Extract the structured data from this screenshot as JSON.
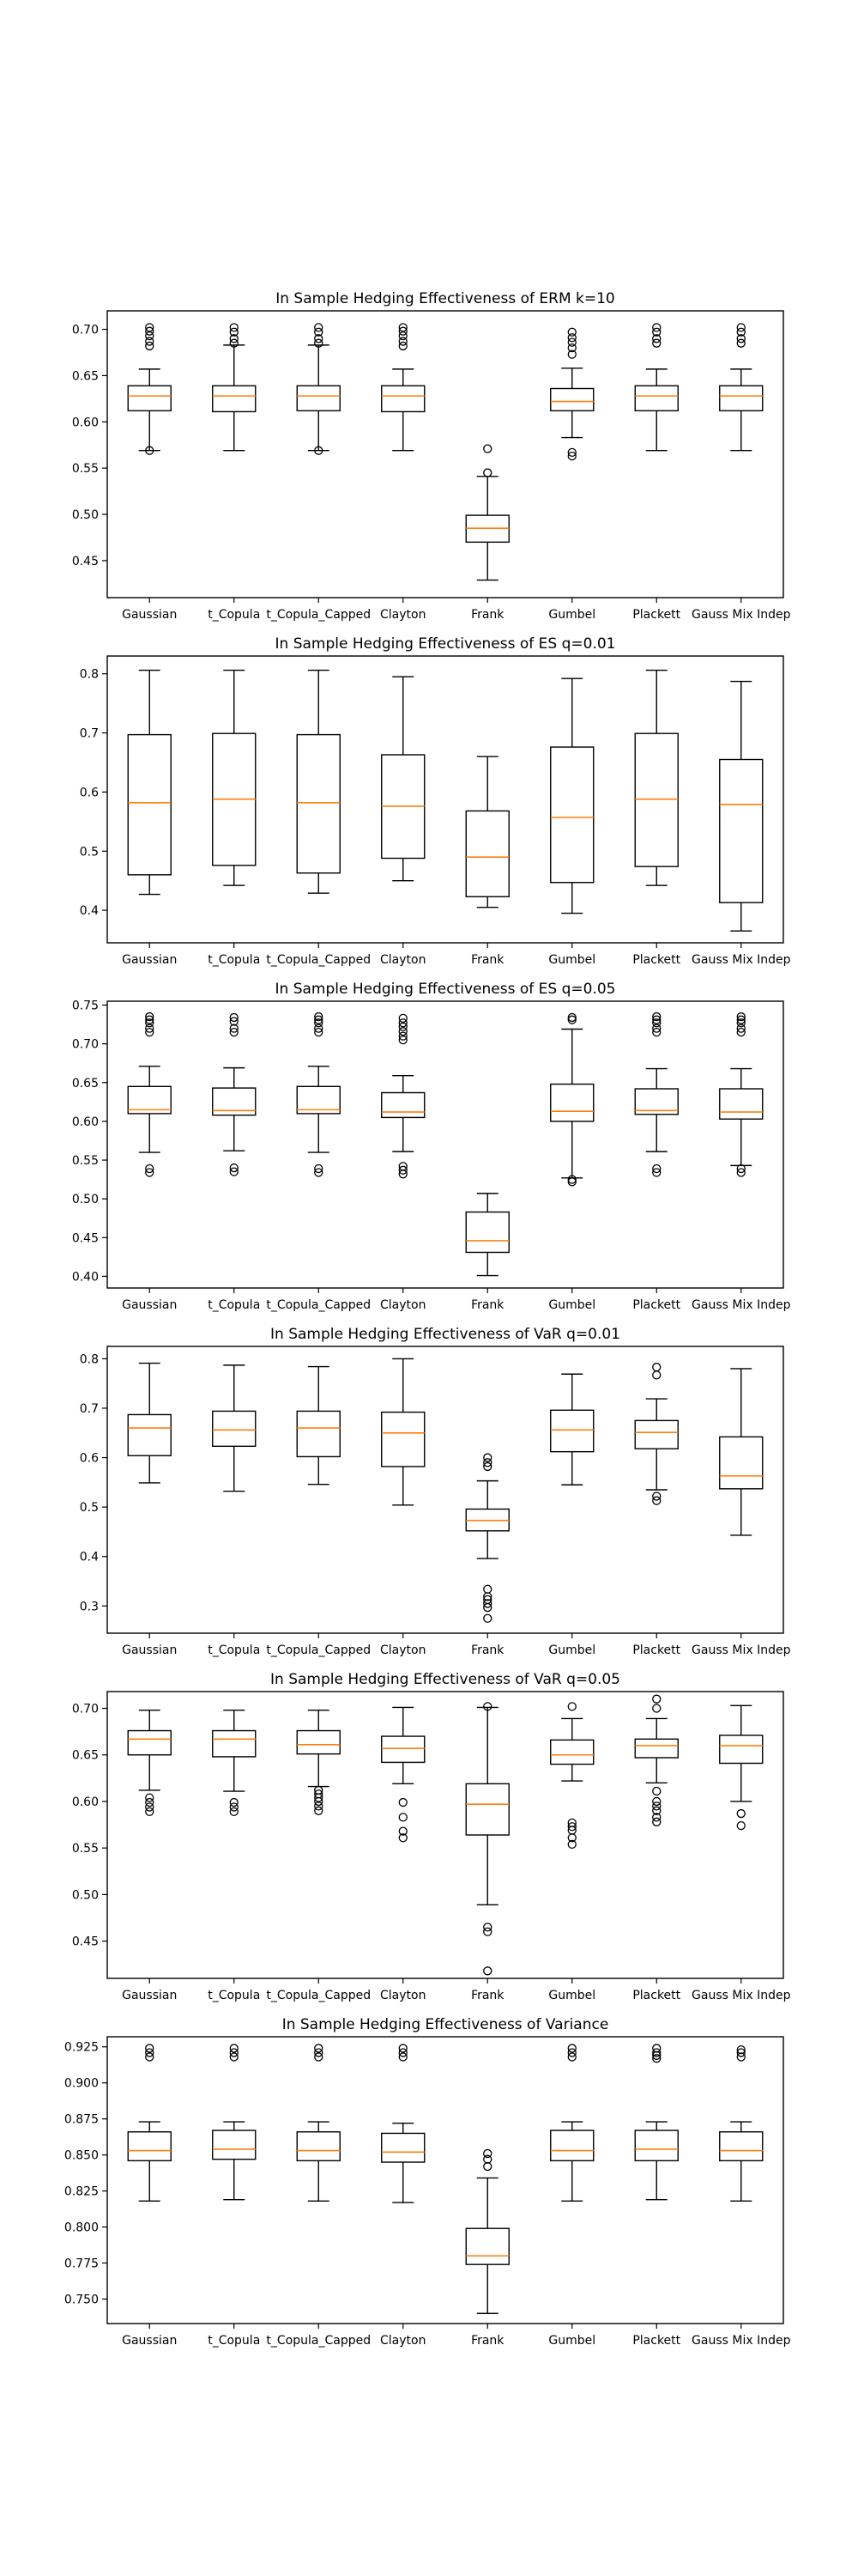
{
  "chart_data": [
    {
      "type": "boxplot",
      "title": "In Sample Hedging Effectiveness of ERM k=10",
      "categories": [
        "Gaussian",
        "t_Copula",
        "t_Copula_Capped",
        "Clayton",
        "Frank",
        "Gumbel",
        "Plackett",
        "Gauss Mix Indep"
      ],
      "ylim": [
        0.41,
        0.72
      ],
      "yticks": [
        0.45,
        0.5,
        0.55,
        0.6,
        0.65,
        0.7
      ],
      "tick_labels": [
        "0.45",
        "0.50",
        "0.55",
        "0.60",
        "0.65",
        "0.70"
      ],
      "boxes": [
        {
          "whislo": 0.569,
          "q1": 0.612,
          "med": 0.628,
          "q3": 0.639,
          "whishi": 0.657,
          "fliers": [
            0.569,
            0.682,
            0.687,
            0.693,
            0.698,
            0.702
          ]
        },
        {
          "whislo": 0.569,
          "q1": 0.611,
          "med": 0.628,
          "q3": 0.639,
          "whishi": 0.683,
          "fliers": [
            0.685,
            0.69,
            0.697,
            0.702
          ]
        },
        {
          "whislo": 0.569,
          "q1": 0.612,
          "med": 0.628,
          "q3": 0.639,
          "whishi": 0.683,
          "fliers": [
            0.569,
            0.685,
            0.69,
            0.697,
            0.702
          ]
        },
        {
          "whislo": 0.569,
          "q1": 0.611,
          "med": 0.628,
          "q3": 0.639,
          "whishi": 0.657,
          "fliers": [
            0.682,
            0.687,
            0.693,
            0.698,
            0.702
          ]
        },
        {
          "whislo": 0.429,
          "q1": 0.47,
          "med": 0.485,
          "q3": 0.499,
          "whishi": 0.541,
          "fliers": [
            0.545,
            0.571
          ]
        },
        {
          "whislo": 0.583,
          "q1": 0.612,
          "med": 0.622,
          "q3": 0.636,
          "whishi": 0.658,
          "fliers": [
            0.563,
            0.567,
            0.673,
            0.68,
            0.686,
            0.691,
            0.697
          ]
        },
        {
          "whislo": 0.569,
          "q1": 0.612,
          "med": 0.628,
          "q3": 0.639,
          "whishi": 0.657,
          "fliers": [
            0.685,
            0.69,
            0.697,
            0.702
          ]
        },
        {
          "whislo": 0.569,
          "q1": 0.612,
          "med": 0.628,
          "q3": 0.639,
          "whishi": 0.657,
          "fliers": [
            0.685,
            0.69,
            0.697,
            0.702
          ]
        }
      ]
    },
    {
      "type": "boxplot",
      "title": "In Sample Hedging Effectiveness of ES q=0.01",
      "categories": [
        "Gaussian",
        "t_Copula",
        "t_Copula_Capped",
        "Clayton",
        "Frank",
        "Gumbel",
        "Plackett",
        "Gauss Mix Indep"
      ],
      "ylim": [
        0.345,
        0.83
      ],
      "yticks": [
        0.4,
        0.5,
        0.6,
        0.7,
        0.8
      ],
      "tick_labels": [
        "0.4",
        "0.5",
        "0.6",
        "0.7",
        "0.8"
      ],
      "boxes": [
        {
          "whislo": 0.427,
          "q1": 0.46,
          "med": 0.582,
          "q3": 0.697,
          "whishi": 0.806,
          "fliers": []
        },
        {
          "whislo": 0.442,
          "q1": 0.476,
          "med": 0.588,
          "q3": 0.699,
          "whishi": 0.806,
          "fliers": []
        },
        {
          "whislo": 0.429,
          "q1": 0.463,
          "med": 0.582,
          "q3": 0.697,
          "whishi": 0.806,
          "fliers": []
        },
        {
          "whislo": 0.45,
          "q1": 0.488,
          "med": 0.576,
          "q3": 0.663,
          "whishi": 0.795,
          "fliers": []
        },
        {
          "whislo": 0.405,
          "q1": 0.423,
          "med": 0.49,
          "q3": 0.568,
          "whishi": 0.66,
          "fliers": []
        },
        {
          "whislo": 0.395,
          "q1": 0.447,
          "med": 0.557,
          "q3": 0.676,
          "whishi": 0.792,
          "fliers": []
        },
        {
          "whislo": 0.442,
          "q1": 0.474,
          "med": 0.588,
          "q3": 0.699,
          "whishi": 0.806,
          "fliers": []
        },
        {
          "whislo": 0.365,
          "q1": 0.413,
          "med": 0.579,
          "q3": 0.655,
          "whishi": 0.787,
          "fliers": []
        }
      ]
    },
    {
      "type": "boxplot",
      "title": "In Sample Hedging Effectiveness of ES q=0.05",
      "categories": [
        "Gaussian",
        "t_Copula",
        "t_Copula_Capped",
        "Clayton",
        "Frank",
        "Gumbel",
        "Plackett",
        "Gauss Mix Indep"
      ],
      "ylim": [
        0.385,
        0.755
      ],
      "yticks": [
        0.4,
        0.45,
        0.5,
        0.55,
        0.6,
        0.65,
        0.7,
        0.75
      ],
      "tick_labels": [
        "0.40",
        "0.45",
        "0.50",
        "0.55",
        "0.60",
        "0.65",
        "0.70",
        "0.75"
      ],
      "boxes": [
        {
          "whislo": 0.56,
          "q1": 0.61,
          "med": 0.615,
          "q3": 0.645,
          "whishi": 0.671,
          "fliers": [
            0.534,
            0.539,
            0.715,
            0.72,
            0.727,
            0.731,
            0.735
          ]
        },
        {
          "whislo": 0.562,
          "q1": 0.608,
          "med": 0.614,
          "q3": 0.643,
          "whishi": 0.669,
          "fliers": [
            0.535,
            0.54,
            0.715,
            0.72,
            0.729,
            0.734
          ]
        },
        {
          "whislo": 0.56,
          "q1": 0.61,
          "med": 0.615,
          "q3": 0.645,
          "whishi": 0.671,
          "fliers": [
            0.534,
            0.539,
            0.715,
            0.72,
            0.727,
            0.731,
            0.735
          ]
        },
        {
          "whislo": 0.561,
          "q1": 0.605,
          "med": 0.612,
          "q3": 0.637,
          "whishi": 0.659,
          "fliers": [
            0.532,
            0.537,
            0.542,
            0.705,
            0.71,
            0.716,
            0.722,
            0.727,
            0.733
          ]
        },
        {
          "whislo": 0.401,
          "q1": 0.431,
          "med": 0.446,
          "q3": 0.483,
          "whishi": 0.507,
          "fliers": []
        },
        {
          "whislo": 0.527,
          "q1": 0.6,
          "med": 0.613,
          "q3": 0.648,
          "whishi": 0.719,
          "fliers": [
            0.522,
            0.525,
            0.731,
            0.734
          ]
        },
        {
          "whislo": 0.561,
          "q1": 0.609,
          "med": 0.614,
          "q3": 0.642,
          "whishi": 0.668,
          "fliers": [
            0.534,
            0.539,
            0.715,
            0.72,
            0.727,
            0.731,
            0.735
          ]
        },
        {
          "whislo": 0.543,
          "q1": 0.603,
          "med": 0.612,
          "q3": 0.642,
          "whishi": 0.668,
          "fliers": [
            0.534,
            0.539,
            0.715,
            0.72,
            0.727,
            0.731,
            0.735
          ]
        }
      ]
    },
    {
      "type": "boxplot",
      "title": "In Sample Hedging Effectiveness of VaR q=0.01",
      "categories": [
        "Gaussian",
        "t_Copula",
        "t_Copula_Capped",
        "Clayton",
        "Frank",
        "Gumbel",
        "Plackett",
        "Gauss Mix Indep"
      ],
      "ylim": [
        0.245,
        0.825
      ],
      "yticks": [
        0.3,
        0.4,
        0.5,
        0.6,
        0.7,
        0.8
      ],
      "tick_labels": [
        "0.3",
        "0.4",
        "0.5",
        "0.6",
        "0.7",
        "0.8"
      ],
      "boxes": [
        {
          "whislo": 0.549,
          "q1": 0.604,
          "med": 0.66,
          "q3": 0.687,
          "whishi": 0.791,
          "fliers": []
        },
        {
          "whislo": 0.532,
          "q1": 0.623,
          "med": 0.656,
          "q3": 0.694,
          "whishi": 0.787,
          "fliers": []
        },
        {
          "whislo": 0.546,
          "q1": 0.602,
          "med": 0.66,
          "q3": 0.694,
          "whishi": 0.784,
          "fliers": []
        },
        {
          "whislo": 0.504,
          "q1": 0.582,
          "med": 0.65,
          "q3": 0.692,
          "whishi": 0.8,
          "fliers": []
        },
        {
          "whislo": 0.396,
          "q1": 0.452,
          "med": 0.473,
          "q3": 0.496,
          "whishi": 0.553,
          "fliers": [
            0.275,
            0.297,
            0.305,
            0.313,
            0.319,
            0.334,
            0.582,
            0.59,
            0.6
          ]
        },
        {
          "whislo": 0.545,
          "q1": 0.612,
          "med": 0.656,
          "q3": 0.696,
          "whishi": 0.769,
          "fliers": []
        },
        {
          "whislo": 0.535,
          "q1": 0.618,
          "med": 0.651,
          "q3": 0.675,
          "whishi": 0.719,
          "fliers": [
            0.513,
            0.522,
            0.767,
            0.783
          ]
        },
        {
          "whislo": 0.443,
          "q1": 0.537,
          "med": 0.563,
          "q3": 0.642,
          "whishi": 0.78,
          "fliers": []
        }
      ]
    },
    {
      "type": "boxplot",
      "title": "In Sample Hedging Effectiveness of VaR q=0.05",
      "categories": [
        "Gaussian",
        "t_Copula",
        "t_Copula_Capped",
        "Clayton",
        "Frank",
        "Gumbel",
        "Plackett",
        "Gauss Mix Indep"
      ],
      "ylim": [
        0.41,
        0.718
      ],
      "yticks": [
        0.45,
        0.5,
        0.55,
        0.6,
        0.65,
        0.7
      ],
      "tick_labels": [
        "0.45",
        "0.50",
        "0.55",
        "0.60",
        "0.65",
        "0.70"
      ],
      "boxes": [
        {
          "whislo": 0.612,
          "q1": 0.65,
          "med": 0.667,
          "q3": 0.676,
          "whishi": 0.698,
          "fliers": [
            0.589,
            0.594,
            0.599,
            0.604
          ]
        },
        {
          "whislo": 0.611,
          "q1": 0.648,
          "med": 0.667,
          "q3": 0.676,
          "whishi": 0.698,
          "fliers": [
            0.589,
            0.594,
            0.599
          ]
        },
        {
          "whislo": 0.616,
          "q1": 0.651,
          "med": 0.661,
          "q3": 0.676,
          "whishi": 0.698,
          "fliers": [
            0.59,
            0.595,
            0.6,
            0.604,
            0.608,
            0.612
          ]
        },
        {
          "whislo": 0.619,
          "q1": 0.642,
          "med": 0.657,
          "q3": 0.67,
          "whishi": 0.701,
          "fliers": [
            0.561,
            0.568,
            0.583,
            0.599
          ]
        },
        {
          "whislo": 0.489,
          "q1": 0.564,
          "med": 0.597,
          "q3": 0.619,
          "whishi": 0.701,
          "fliers": [
            0.418,
            0.46,
            0.465,
            0.702
          ]
        },
        {
          "whislo": 0.622,
          "q1": 0.64,
          "med": 0.65,
          "q3": 0.666,
          "whishi": 0.689,
          "fliers": [
            0.554,
            0.561,
            0.569,
            0.573,
            0.577,
            0.702
          ]
        },
        {
          "whislo": 0.62,
          "q1": 0.647,
          "med": 0.66,
          "q3": 0.667,
          "whishi": 0.689,
          "fliers": [
            0.578,
            0.583,
            0.59,
            0.595,
            0.6,
            0.611,
            0.7,
            0.71
          ]
        },
        {
          "whislo": 0.6,
          "q1": 0.641,
          "med": 0.66,
          "q3": 0.671,
          "whishi": 0.703,
          "fliers": [
            0.574,
            0.587
          ]
        }
      ]
    },
    {
      "type": "boxplot",
      "title": "In Sample Hedging Effectiveness of Variance",
      "categories": [
        "Gaussian",
        "t_Copula",
        "t_Copula_Capped",
        "Clayton",
        "Frank",
        "Gumbel",
        "Plackett",
        "Gauss Mix Indep"
      ],
      "ylim": [
        0.733,
        0.932
      ],
      "yticks": [
        0.75,
        0.775,
        0.8,
        0.825,
        0.85,
        0.875,
        0.9,
        0.925
      ],
      "tick_labels": [
        "0.750",
        "0.775",
        "0.800",
        "0.825",
        "0.850",
        "0.875",
        "0.900",
        "0.925"
      ],
      "boxes": [
        {
          "whislo": 0.818,
          "q1": 0.846,
          "med": 0.853,
          "q3": 0.866,
          "whishi": 0.873,
          "fliers": [
            0.918,
            0.921,
            0.924
          ]
        },
        {
          "whislo": 0.819,
          "q1": 0.847,
          "med": 0.854,
          "q3": 0.867,
          "whishi": 0.873,
          "fliers": [
            0.918,
            0.921,
            0.924
          ]
        },
        {
          "whislo": 0.818,
          "q1": 0.846,
          "med": 0.853,
          "q3": 0.866,
          "whishi": 0.873,
          "fliers": [
            0.918,
            0.921,
            0.924
          ]
        },
        {
          "whislo": 0.817,
          "q1": 0.845,
          "med": 0.852,
          "q3": 0.865,
          "whishi": 0.872,
          "fliers": [
            0.918,
            0.921,
            0.924
          ]
        },
        {
          "whislo": 0.74,
          "q1": 0.774,
          "med": 0.78,
          "q3": 0.799,
          "whishi": 0.834,
          "fliers": [
            0.842,
            0.847,
            0.851
          ]
        },
        {
          "whislo": 0.818,
          "q1": 0.846,
          "med": 0.853,
          "q3": 0.867,
          "whishi": 0.873,
          "fliers": [
            0.918,
            0.921,
            0.924
          ]
        },
        {
          "whislo": 0.819,
          "q1": 0.846,
          "med": 0.854,
          "q3": 0.867,
          "whishi": 0.873,
          "fliers": [
            0.917,
            0.919,
            0.921,
            0.924
          ]
        },
        {
          "whislo": 0.818,
          "q1": 0.846,
          "med": 0.853,
          "q3": 0.866,
          "whishi": 0.873,
          "fliers": [
            0.918,
            0.921,
            0.923
          ]
        }
      ]
    }
  ],
  "colors": {
    "median": "#ff7f0e",
    "box": "#000000",
    "flier": "#000000"
  }
}
